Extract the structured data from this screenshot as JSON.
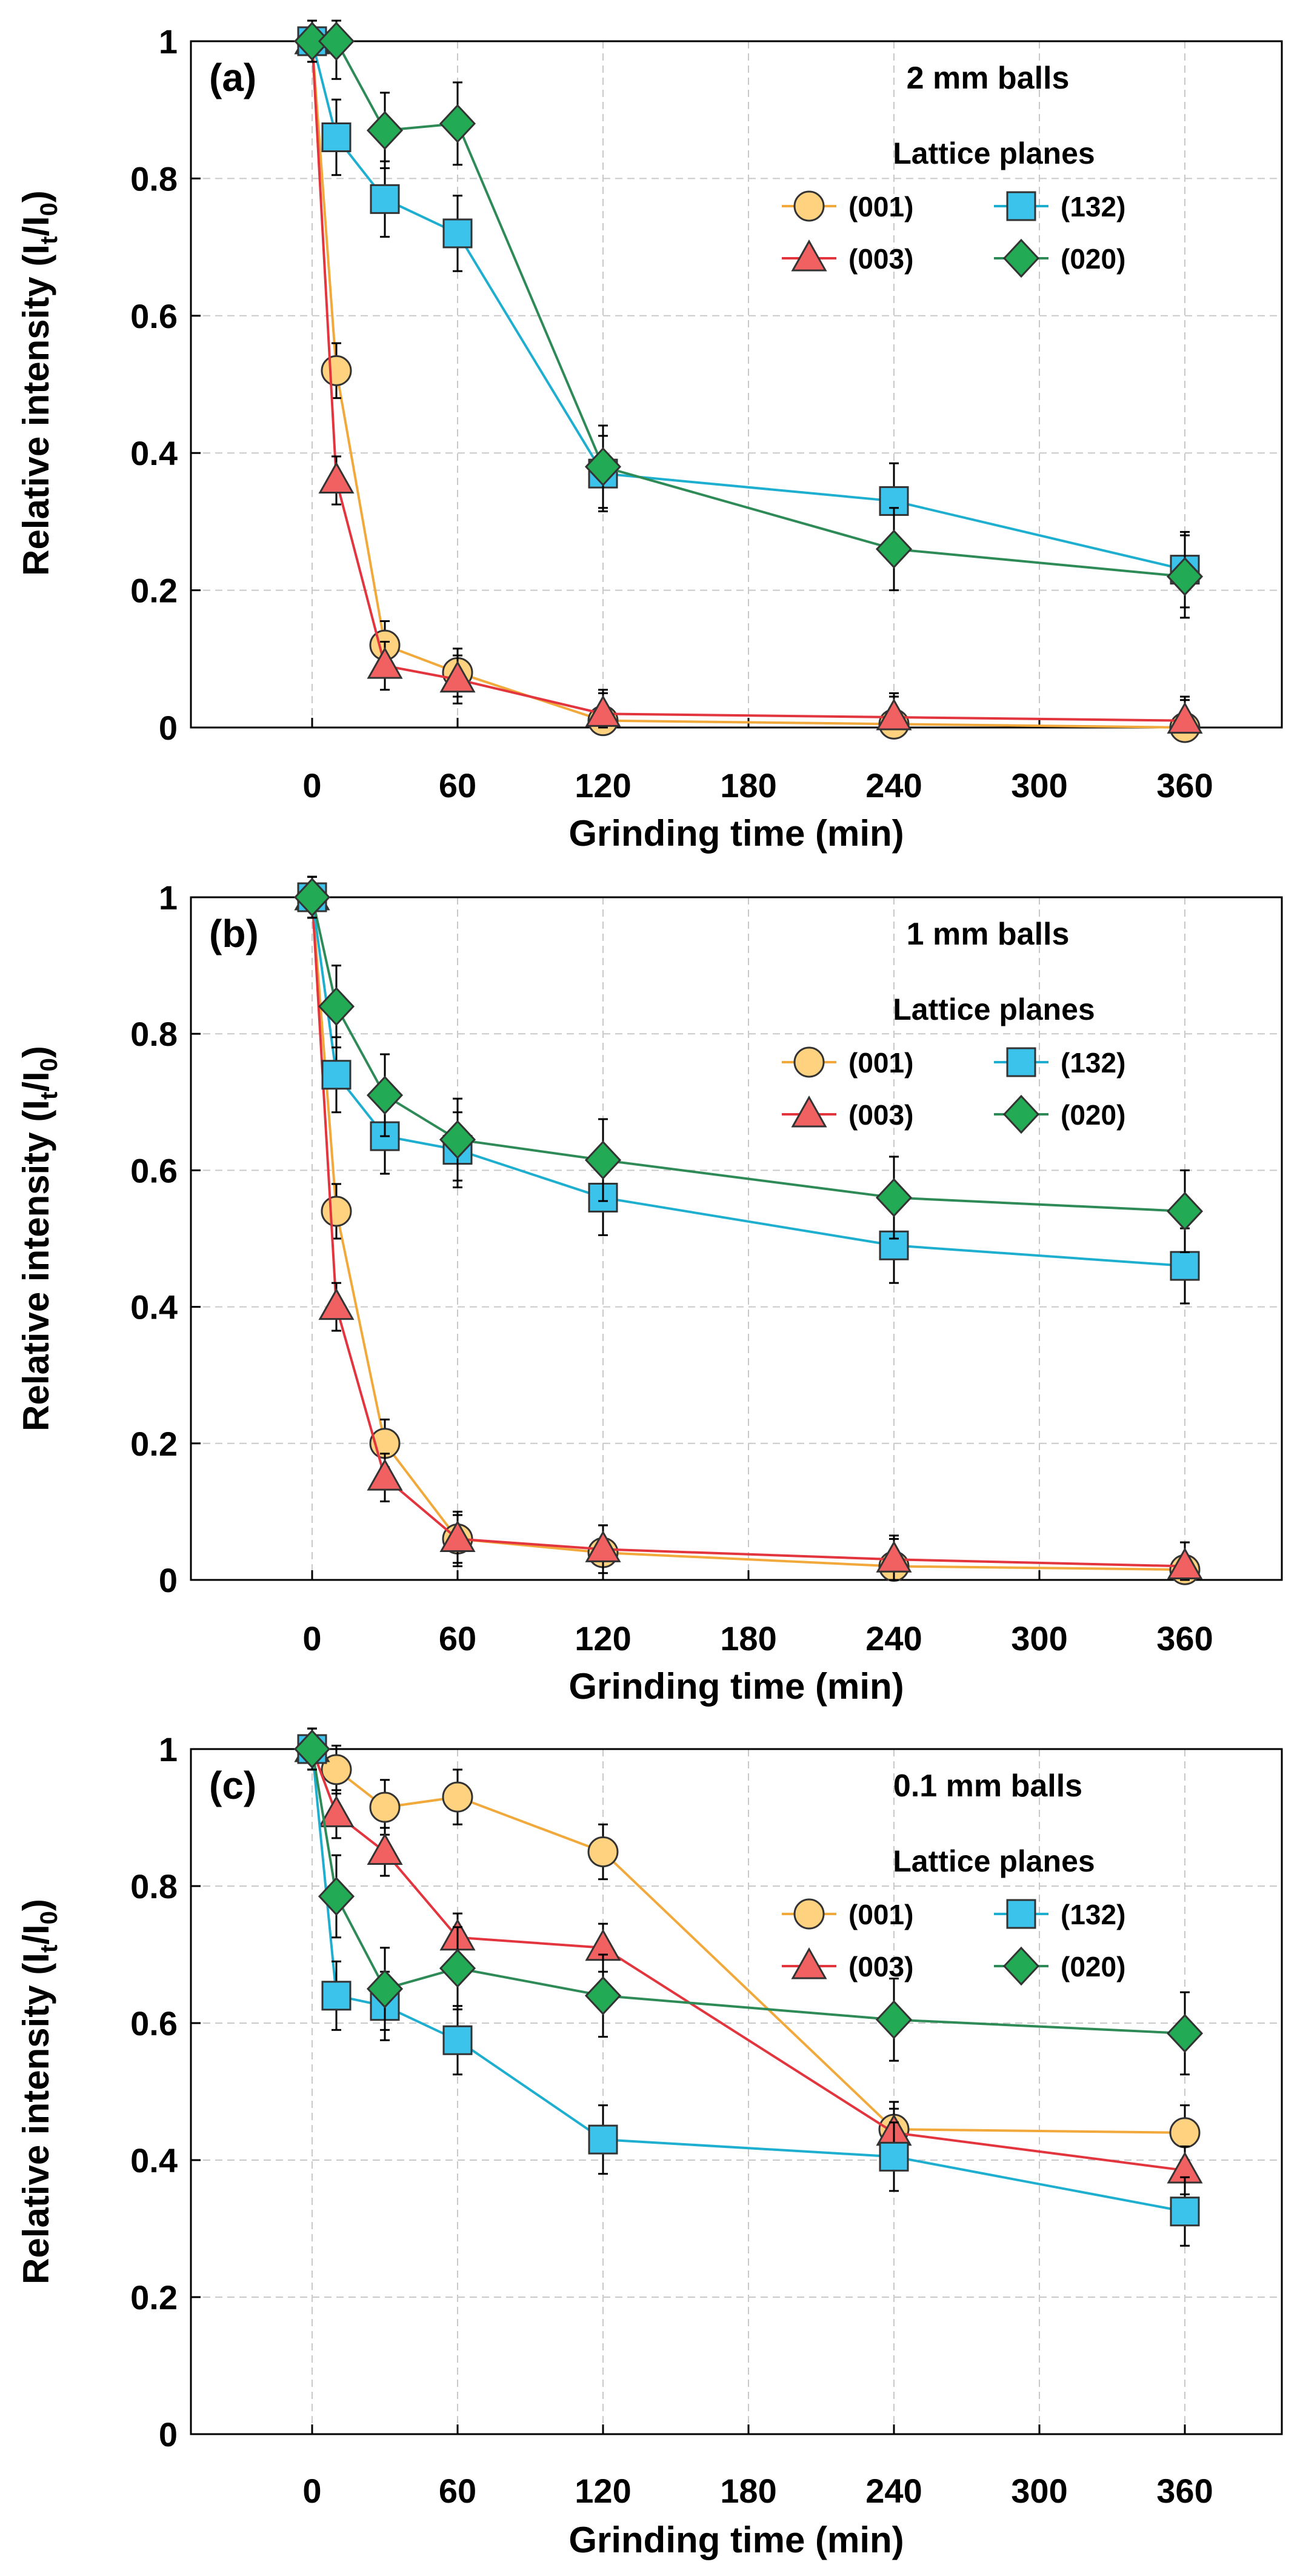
{
  "chart_data": [
    {
      "type": "line",
      "panel_label": "(a)",
      "annotation": "2 mm balls",
      "legend_title": "Lattice planes",
      "xlabel": "Grinding time (min)",
      "ylabel": "Relative intensity (I_t/I_0)",
      "ylabel_parts": [
        "Relative intensity (I",
        "t",
        "/I",
        "0",
        ")"
      ],
      "xlim": [
        -50,
        400
      ],
      "ylim": [
        0,
        1
      ],
      "xticks": [
        0,
        60,
        120,
        180,
        240,
        300,
        360
      ],
      "yticks": [
        0,
        0.2,
        0.4,
        0.6,
        0.8,
        1
      ],
      "ytick_labels": [
        "0",
        "0.2",
        "0.4",
        "0.6",
        "0.8",
        "1"
      ],
      "grid": true,
      "series": [
        {
          "name": "(001)",
          "marker": "circle",
          "color": "#F2A93B",
          "fill": "#FFD27F",
          "x": [
            0,
            10,
            30,
            60,
            120,
            240,
            360
          ],
          "y": [
            1.0,
            0.52,
            0.12,
            0.08,
            0.01,
            0.005,
            0.0
          ],
          "err": [
            0.03,
            0.04,
            0.035,
            0.035,
            0.04,
            0.04,
            0.04
          ]
        },
        {
          "name": "(003)",
          "marker": "triangle",
          "color": "#E2353E",
          "fill": "#F26161",
          "x": [
            0,
            10,
            30,
            60,
            120,
            240,
            360
          ],
          "y": [
            1.0,
            0.36,
            0.09,
            0.07,
            0.02,
            0.015,
            0.01
          ],
          "err": [
            0.03,
            0.035,
            0.035,
            0.035,
            0.035,
            0.035,
            0.035
          ]
        },
        {
          "name": "(132)",
          "marker": "square",
          "color": "#1EAFD0",
          "fill": "#3CC3EC",
          "x": [
            0,
            10,
            30,
            60,
            120,
            240,
            360
          ],
          "y": [
            1.0,
            0.86,
            0.77,
            0.72,
            0.37,
            0.33,
            0.23
          ],
          "err": [
            0.03,
            0.055,
            0.055,
            0.055,
            0.055,
            0.055,
            0.055
          ]
        },
        {
          "name": "(020)",
          "marker": "diamond",
          "color": "#2E8B57",
          "fill": "#22AA55",
          "x": [
            0,
            10,
            30,
            60,
            120,
            240,
            360
          ],
          "y": [
            1.0,
            1.0,
            0.87,
            0.88,
            0.38,
            0.26,
            0.22
          ],
          "err": [
            0.03,
            0.055,
            0.055,
            0.06,
            0.06,
            0.06,
            0.06
          ]
        }
      ]
    },
    {
      "type": "line",
      "panel_label": "(b)",
      "annotation": "1 mm balls",
      "legend_title": "Lattice planes",
      "xlabel": "Grinding time (min)",
      "ylabel": "Relative intensity (I_t/I_0)",
      "ylabel_parts": [
        "Relative intensity (I",
        "t",
        "/I",
        "0",
        ")"
      ],
      "xlim": [
        -50,
        400
      ],
      "ylim": [
        0,
        1
      ],
      "xticks": [
        0,
        60,
        120,
        180,
        240,
        300,
        360
      ],
      "yticks": [
        0,
        0.2,
        0.4,
        0.6,
        0.8,
        1
      ],
      "ytick_labels": [
        "0",
        "0.2",
        "0.4",
        "0.6",
        "0.8",
        "1"
      ],
      "grid": true,
      "series": [
        {
          "name": "(001)",
          "marker": "circle",
          "color": "#F2A93B",
          "fill": "#FFD27F",
          "x": [
            0,
            10,
            30,
            60,
            120,
            240,
            360
          ],
          "y": [
            1.0,
            0.54,
            0.2,
            0.06,
            0.04,
            0.02,
            0.015
          ],
          "err": [
            0.03,
            0.04,
            0.035,
            0.04,
            0.04,
            0.04,
            0.04
          ]
        },
        {
          "name": "(003)",
          "marker": "triangle",
          "color": "#E2353E",
          "fill": "#F26161",
          "x": [
            0,
            10,
            30,
            60,
            120,
            240,
            360
          ],
          "y": [
            1.0,
            0.4,
            0.15,
            0.06,
            0.045,
            0.03,
            0.02
          ],
          "err": [
            0.03,
            0.035,
            0.035,
            0.035,
            0.035,
            0.035,
            0.035
          ]
        },
        {
          "name": "(132)",
          "marker": "square",
          "color": "#1EAFD0",
          "fill": "#3CC3EC",
          "x": [
            0,
            10,
            30,
            60,
            120,
            240,
            360
          ],
          "y": [
            1.0,
            0.74,
            0.65,
            0.63,
            0.56,
            0.49,
            0.46
          ],
          "err": [
            0.03,
            0.055,
            0.055,
            0.055,
            0.055,
            0.055,
            0.055
          ]
        },
        {
          "name": "(020)",
          "marker": "diamond",
          "color": "#2E8B57",
          "fill": "#22AA55",
          "x": [
            0,
            10,
            30,
            60,
            120,
            240,
            360
          ],
          "y": [
            1.0,
            0.84,
            0.71,
            0.645,
            0.615,
            0.56,
            0.54
          ],
          "err": [
            0.03,
            0.06,
            0.06,
            0.06,
            0.06,
            0.06,
            0.06
          ]
        }
      ]
    },
    {
      "type": "line",
      "panel_label": "(c)",
      "annotation": "0.1 mm balls",
      "legend_title": "Lattice planes",
      "xlabel": "Grinding time (min)",
      "ylabel": "Relative intensity (I_t/I_0)",
      "ylabel_parts": [
        "Relative intensity (I",
        "t",
        "/I",
        "0",
        ")"
      ],
      "xlim": [
        -50,
        400
      ],
      "ylim": [
        0,
        1
      ],
      "xticks": [
        0,
        60,
        120,
        180,
        240,
        300,
        360
      ],
      "yticks": [
        0,
        0.2,
        0.4,
        0.6,
        0.8,
        1
      ],
      "ytick_labels": [
        "0",
        "0.2",
        "0.4",
        "0.6",
        "0.8",
        "1"
      ],
      "grid": true,
      "series": [
        {
          "name": "(001)",
          "marker": "circle",
          "color": "#F2A93B",
          "fill": "#FFD27F",
          "x": [
            0,
            10,
            30,
            60,
            120,
            240,
            360
          ],
          "y": [
            1.0,
            0.97,
            0.915,
            0.93,
            0.85,
            0.445,
            0.44
          ],
          "err": [
            0.03,
            0.035,
            0.04,
            0.04,
            0.04,
            0.04,
            0.04
          ]
        },
        {
          "name": "(003)",
          "marker": "triangle",
          "color": "#E2353E",
          "fill": "#F26161",
          "x": [
            0,
            10,
            30,
            60,
            120,
            240,
            360
          ],
          "y": [
            1.0,
            0.905,
            0.85,
            0.725,
            0.71,
            0.44,
            0.385
          ],
          "err": [
            0.03,
            0.035,
            0.035,
            0.035,
            0.035,
            0.035,
            0.035
          ]
        },
        {
          "name": "(132)",
          "marker": "square",
          "color": "#1EAFD0",
          "fill": "#3CC3EC",
          "x": [
            0,
            10,
            30,
            60,
            120,
            240,
            360
          ],
          "y": [
            1.0,
            0.64,
            0.625,
            0.575,
            0.43,
            0.405,
            0.325
          ],
          "err": [
            0.03,
            0.05,
            0.05,
            0.05,
            0.05,
            0.05,
            0.05
          ]
        },
        {
          "name": "(020)",
          "marker": "diamond",
          "color": "#2E8B57",
          "fill": "#22AA55",
          "x": [
            0,
            10,
            30,
            60,
            120,
            240,
            360
          ],
          "y": [
            1.0,
            0.785,
            0.65,
            0.68,
            0.64,
            0.605,
            0.585
          ],
          "err": [
            0.03,
            0.06,
            0.06,
            0.06,
            0.06,
            0.06,
            0.06
          ]
        }
      ]
    }
  ]
}
